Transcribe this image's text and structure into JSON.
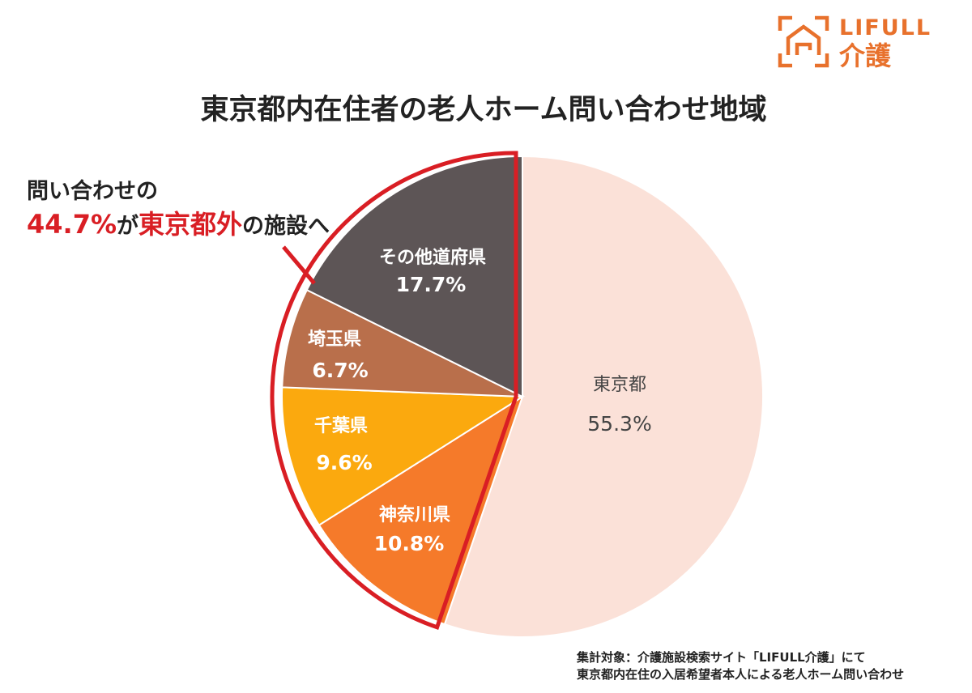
{
  "brand": {
    "en": "LIFULL",
    "jp": "介護",
    "color": "#e8712c"
  },
  "chart_data": {
    "type": "pie",
    "title": "東京都内在住者の老人ホーム問い合わせ地域",
    "slices": [
      {
        "label": "東京都",
        "value": 55.3,
        "display": "55.3%",
        "color": "#fbe1d8"
      },
      {
        "label": "神奈川県",
        "value": 10.8,
        "display": "10.8%",
        "color": "#f57a2a"
      },
      {
        "label": "千葉県",
        "value": 9.6,
        "display": "9.6%",
        "color": "#fba90e"
      },
      {
        "label": "埼玉県",
        "value": 6.7,
        "display": "6.7%",
        "color": "#b96f4b"
      },
      {
        "label": "その他道府県",
        "value": 17.7,
        "display": "17.7%",
        "color": "#5d5556"
      }
    ],
    "highlight": {
      "from_index": 1,
      "to_index": 4,
      "outline_color": "#d91e24"
    }
  },
  "callout": {
    "line1": "問い合わせの",
    "pct": "44.7%",
    "ga": "が",
    "region": "東京都外",
    "tail": "の施設へ"
  },
  "footnote": {
    "line1": "集計対象：介護施設検索サイト「LIFULL介護」にて",
    "line2": "東京都内在住の入居希望者本人による老人ホーム問い合わせ"
  }
}
